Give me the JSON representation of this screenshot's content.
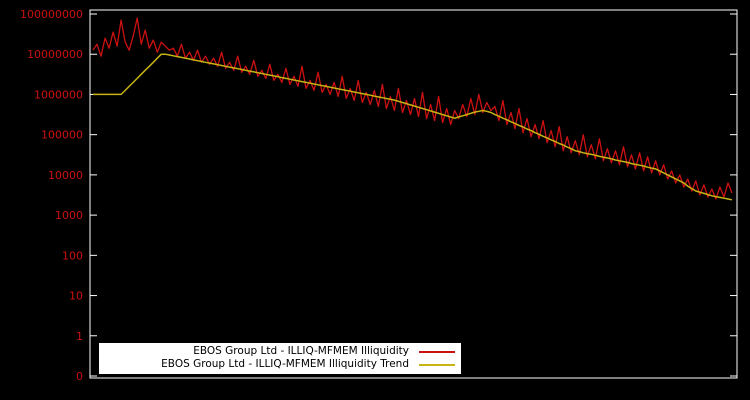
{
  "chart_data": {
    "type": "line",
    "title": "",
    "xlabel": "",
    "ylabel": "",
    "y_scale": "log10",
    "background_color": "#000000",
    "border_color": "#ffffff",
    "tick_label_color": "#cc1111",
    "y_tick_labels": [
      "100000000",
      "10000000",
      "1000000",
      "100000",
      "10000",
      "1000",
      "100",
      "10",
      "1",
      "0"
    ],
    "legend_position": "bottom-center-inside",
    "legend_background": "#ffffff",
    "series": [
      {
        "name": "EBOS Group Ltd - ILLIQ-MFMEM Illiquidity",
        "color": "#cc1111",
        "log10_values": [
          7.1,
          7.25,
          6.95,
          7.4,
          7.15,
          7.55,
          7.2,
          7.85,
          7.3,
          7.1,
          7.45,
          7.9,
          7.25,
          7.6,
          7.15,
          7.35,
          7.05,
          7.3,
          7.2,
          7.1,
          7.15,
          6.95,
          7.25,
          6.9,
          7.05,
          6.85,
          7.1,
          6.8,
          6.95,
          6.75,
          6.9,
          6.7,
          7.05,
          6.65,
          6.8,
          6.6,
          6.95,
          6.55,
          6.7,
          6.5,
          6.85,
          6.45,
          6.6,
          6.4,
          6.75,
          6.35,
          6.5,
          6.3,
          6.65,
          6.25,
          6.45,
          6.2,
          6.7,
          6.15,
          6.35,
          6.1,
          6.55,
          6.05,
          6.25,
          6.0,
          6.3,
          5.95,
          6.45,
          5.9,
          6.15,
          5.85,
          6.35,
          5.8,
          6.05,
          5.75,
          6.1,
          5.7,
          6.25,
          5.65,
          5.95,
          5.6,
          6.15,
          5.55,
          5.85,
          5.5,
          5.9,
          5.45,
          6.05,
          5.4,
          5.75,
          5.35,
          5.95,
          5.3,
          5.65,
          5.25,
          5.6,
          5.4,
          5.75,
          5.45,
          5.9,
          5.5,
          6.0,
          5.55,
          5.8,
          5.6,
          5.7,
          5.35,
          5.85,
          5.25,
          5.55,
          5.15,
          5.65,
          5.05,
          5.4,
          4.95,
          5.25,
          4.9,
          5.35,
          4.8,
          5.1,
          4.7,
          5.2,
          4.6,
          4.95,
          4.55,
          4.85,
          4.5,
          5.0,
          4.45,
          4.75,
          4.4,
          4.9,
          4.35,
          4.65,
          4.3,
          4.6,
          4.25,
          4.7,
          4.2,
          4.5,
          4.15,
          4.55,
          4.1,
          4.45,
          4.05,
          4.35,
          4.0,
          4.25,
          3.9,
          4.1,
          3.8,
          4.0,
          3.7,
          3.9,
          3.6,
          3.85,
          3.5,
          3.75,
          3.45,
          3.65,
          3.4,
          3.7,
          3.45,
          3.8,
          3.55
        ]
      },
      {
        "name": "EBOS Group Ltd - ILLIQ-MFMEM Illiquidity Trend",
        "color": "#c8b414",
        "log10_values": [
          6.0,
          6.0,
          6.0,
          6.0,
          6.0,
          6.0,
          6.0,
          6.0,
          6.1,
          6.2,
          6.3,
          6.4,
          6.5,
          6.6,
          6.7,
          6.8,
          6.9,
          7.0,
          7.0,
          6.98,
          6.96,
          6.94,
          6.92,
          6.9,
          6.88,
          6.86,
          6.84,
          6.82,
          6.8,
          6.78,
          6.76,
          6.74,
          6.72,
          6.7,
          6.68,
          6.66,
          6.64,
          6.62,
          6.6,
          6.58,
          6.56,
          6.54,
          6.52,
          6.5,
          6.48,
          6.46,
          6.44,
          6.42,
          6.4,
          6.38,
          6.36,
          6.34,
          6.32,
          6.3,
          6.28,
          6.26,
          6.24,
          6.22,
          6.2,
          6.18,
          6.16,
          6.14,
          6.12,
          6.1,
          6.08,
          6.06,
          6.04,
          6.02,
          6.0,
          5.98,
          5.96,
          5.94,
          5.92,
          5.9,
          5.88,
          5.86,
          5.83,
          5.8,
          5.77,
          5.74,
          5.71,
          5.68,
          5.65,
          5.62,
          5.59,
          5.56,
          5.53,
          5.5,
          5.47,
          5.44,
          5.41,
          5.44,
          5.47,
          5.5,
          5.53,
          5.56,
          5.58,
          5.6,
          5.58,
          5.55,
          5.5,
          5.46,
          5.41,
          5.37,
          5.32,
          5.28,
          5.23,
          5.19,
          5.14,
          5.1,
          5.05,
          5.01,
          4.96,
          4.92,
          4.87,
          4.83,
          4.78,
          4.74,
          4.69,
          4.65,
          4.6,
          4.58,
          4.55,
          4.53,
          4.51,
          4.49,
          4.46,
          4.44,
          4.42,
          4.4,
          4.37,
          4.35,
          4.33,
          4.31,
          4.28,
          4.26,
          4.24,
          4.22,
          4.19,
          4.17,
          4.15,
          4.1,
          4.05,
          4.0,
          3.95,
          3.9,
          3.85,
          3.8,
          3.72,
          3.66,
          3.6,
          3.57,
          3.54,
          3.51,
          3.48,
          3.46,
          3.44,
          3.42,
          3.4,
          3.38
        ]
      }
    ]
  }
}
